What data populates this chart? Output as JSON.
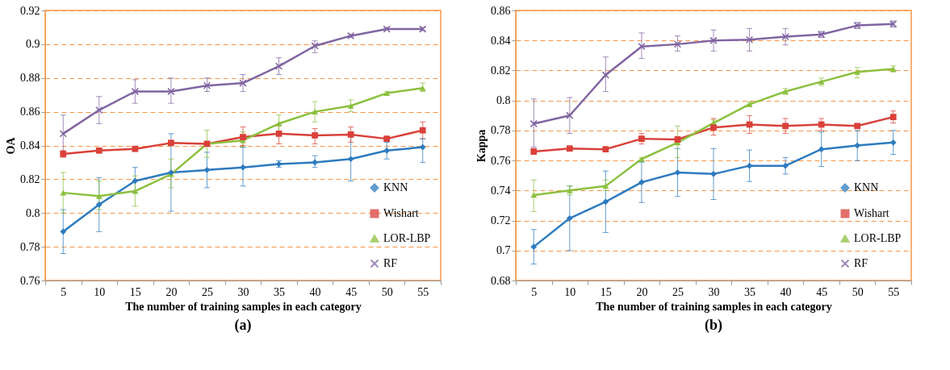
{
  "chart_data": [
    {
      "type": "line",
      "xlabel": "The number of training samples in each category",
      "ylabel": "OA",
      "annotations": [
        "(a)"
      ],
      "legend": "bottom right",
      "grid": "y",
      "ylim": [
        0.76,
        0.92
      ],
      "yticks": [
        0.76,
        0.78,
        0.8,
        0.82,
        0.84,
        0.86,
        0.88,
        0.9,
        0.92
      ],
      "categories": [
        "5",
        "10",
        "15",
        "20",
        "25",
        "30",
        "35",
        "40",
        "45",
        "50",
        "55"
      ],
      "series": [
        {
          "name": "KNN",
          "color": "#2e7bbf",
          "marker": "diamond",
          "values": [
            0.789,
            0.805,
            0.819,
            0.824,
            0.8255,
            0.827,
            0.829,
            0.83,
            0.832,
            0.837,
            0.839
          ],
          "errors": [
            [
              0.776,
              0.802
            ],
            [
              0.789,
              0.821
            ],
            [
              0.812,
              0.827
            ],
            [
              0.801,
              0.847
            ],
            [
              0.815,
              0.836
            ],
            [
              0.816,
              0.839
            ],
            [
              0.827,
              0.831
            ],
            [
              0.827,
              0.834
            ],
            [
              0.819,
              0.846
            ],
            [
              0.832,
              0.842
            ],
            [
              0.83,
              0.844
            ]
          ]
        },
        {
          "name": "Wishart",
          "color": "#d9413a",
          "marker": "square",
          "values": [
            0.835,
            0.837,
            0.838,
            0.8415,
            0.841,
            0.845,
            0.847,
            0.846,
            0.8465,
            0.844,
            0.849
          ],
          "errors": [
            [
              0.833,
              0.837
            ],
            [
              0.836,
              0.838
            ],
            [
              0.837,
              0.839
            ],
            [
              0.84,
              0.843
            ],
            [
              0.84,
              0.842
            ],
            [
              0.84,
              0.851
            ],
            [
              0.841,
              0.852
            ],
            [
              0.841,
              0.85
            ],
            [
              0.842,
              0.851
            ],
            [
              0.843,
              0.845
            ],
            [
              0.844,
              0.854
            ]
          ]
        },
        {
          "name": "LOR-LBP",
          "color": "#8cc03f",
          "marker": "triangle",
          "values": [
            0.812,
            0.81,
            0.813,
            0.823,
            0.841,
            0.843,
            0.853,
            0.86,
            0.8635,
            0.871,
            0.874
          ],
          "errors": [
            [
              0.8,
              0.824
            ],
            [
              0.802,
              0.819
            ],
            [
              0.804,
              0.822
            ],
            [
              0.815,
              0.832
            ],
            [
              0.833,
              0.849
            ],
            [
              0.839,
              0.848
            ],
            [
              0.848,
              0.858
            ],
            [
              0.854,
              0.866
            ],
            [
              0.86,
              0.867
            ],
            [
              0.87,
              0.872
            ],
            [
              0.872,
              0.877
            ]
          ]
        },
        {
          "name": "RF",
          "color": "#8064a2",
          "marker": "cross",
          "values": [
            0.847,
            0.861,
            0.872,
            0.872,
            0.8755,
            0.877,
            0.887,
            0.899,
            0.905,
            0.909,
            0.909
          ],
          "errors": [
            [
              0.836,
              0.858
            ],
            [
              0.853,
              0.869
            ],
            [
              0.865,
              0.879
            ],
            [
              0.865,
              0.88
            ],
            [
              0.872,
              0.88
            ],
            [
              0.872,
              0.882
            ],
            [
              0.882,
              0.892
            ],
            [
              0.895,
              0.902
            ],
            [
              0.904,
              0.906
            ],
            [
              0.909,
              0.91
            ],
            [
              0.908,
              0.91
            ]
          ]
        }
      ]
    },
    {
      "type": "line",
      "xlabel": "The number of training samples in each category",
      "ylabel": "Kappa",
      "annotations": [
        "(b)"
      ],
      "legend": "bottom right",
      "grid": "y",
      "ylim": [
        0.68,
        0.86
      ],
      "yticks": [
        0.68,
        0.7,
        0.72,
        0.74,
        0.76,
        0.78,
        0.8,
        0.82,
        0.84,
        0.86
      ],
      "categories": [
        "5",
        "10",
        "15",
        "20",
        "25",
        "30",
        "35",
        "40",
        "45",
        "50",
        "55"
      ],
      "series": [
        {
          "name": "KNN",
          "color": "#2e7bbf",
          "marker": "diamond",
          "values": [
            0.7025,
            0.7215,
            0.7325,
            0.7455,
            0.752,
            0.751,
            0.7565,
            0.7565,
            0.7675,
            0.77,
            0.772
          ],
          "errors": [
            [
              0.691,
              0.714
            ],
            [
              0.7,
              0.743
            ],
            [
              0.712,
              0.753
            ],
            [
              0.732,
              0.759
            ],
            [
              0.736,
              0.768
            ],
            [
              0.734,
              0.768
            ],
            [
              0.746,
              0.767
            ],
            [
              0.751,
              0.762
            ],
            [
              0.756,
              0.779
            ],
            [
              0.76,
              0.78
            ],
            [
              0.764,
              0.78
            ]
          ]
        },
        {
          "name": "Wishart",
          "color": "#d9413a",
          "marker": "square",
          "values": [
            0.766,
            0.768,
            0.7675,
            0.7745,
            0.774,
            0.782,
            0.784,
            0.783,
            0.784,
            0.783,
            0.789
          ],
          "errors": [
            [
              0.764,
              0.768
            ],
            [
              0.767,
              0.769
            ],
            [
              0.767,
              0.768
            ],
            [
              0.771,
              0.778
            ],
            [
              0.772,
              0.776
            ],
            [
              0.777,
              0.788
            ],
            [
              0.778,
              0.79
            ],
            [
              0.778,
              0.788
            ],
            [
              0.78,
              0.788
            ],
            [
              0.782,
              0.784
            ],
            [
              0.785,
              0.793
            ]
          ]
        },
        {
          "name": "LOR-LBP",
          "color": "#8cc03f",
          "marker": "triangle",
          "values": [
            0.737,
            0.74,
            0.743,
            0.761,
            0.772,
            0.785,
            0.7975,
            0.806,
            0.8125,
            0.819,
            0.821
          ],
          "errors": [
            [
              0.726,
              0.747
            ],
            [
              0.737,
              0.743
            ],
            [
              0.74,
              0.747
            ],
            [
              0.759,
              0.762
            ],
            [
              0.762,
              0.783
            ],
            [
              0.783,
              0.787
            ],
            [
              0.796,
              0.799
            ],
            [
              0.804,
              0.808
            ],
            [
              0.81,
              0.815
            ],
            [
              0.815,
              0.822
            ],
            [
              0.819,
              0.823
            ]
          ]
        },
        {
          "name": "RF",
          "color": "#8064a2",
          "marker": "cross",
          "values": [
            0.7845,
            0.79,
            0.817,
            0.836,
            0.8375,
            0.84,
            0.8405,
            0.8425,
            0.844,
            0.85,
            0.851
          ],
          "errors": [
            [
              0.769,
              0.801
            ],
            [
              0.778,
              0.802
            ],
            [
              0.806,
              0.829
            ],
            [
              0.828,
              0.845
            ],
            [
              0.833,
              0.843
            ],
            [
              0.833,
              0.847
            ],
            [
              0.833,
              0.848
            ],
            [
              0.837,
              0.848
            ],
            [
              0.842,
              0.846
            ],
            [
              0.848,
              0.852
            ],
            [
              0.849,
              0.853
            ]
          ]
        }
      ]
    }
  ]
}
